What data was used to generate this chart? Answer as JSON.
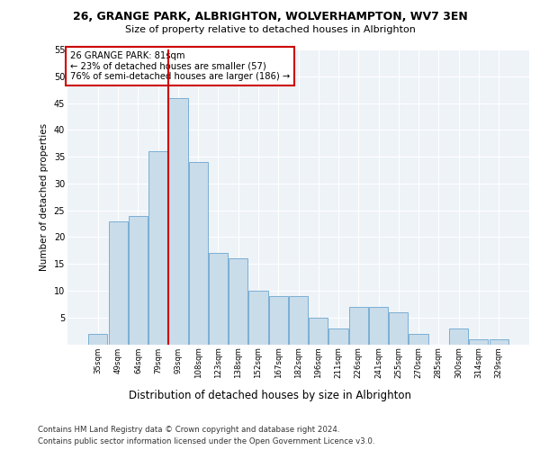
{
  "title1": "26, GRANGE PARK, ALBRIGHTON, WOLVERHAMPTON, WV7 3EN",
  "title2": "Size of property relative to detached houses in Albrighton",
  "xlabel": "Distribution of detached houses by size in Albrighton",
  "ylabel": "Number of detached properties",
  "categories": [
    "35sqm",
    "49sqm",
    "64sqm",
    "79sqm",
    "93sqm",
    "108sqm",
    "123sqm",
    "138sqm",
    "152sqm",
    "167sqm",
    "182sqm",
    "196sqm",
    "211sqm",
    "226sqm",
    "241sqm",
    "255sqm",
    "270sqm",
    "285sqm",
    "300sqm",
    "314sqm",
    "329sqm"
  ],
  "values": [
    2,
    23,
    24,
    36,
    46,
    34,
    17,
    16,
    10,
    9,
    9,
    5,
    3,
    7,
    7,
    6,
    2,
    0,
    3,
    1,
    1
  ],
  "bar_color": "#c9dcea",
  "bar_edge_color": "#7aafd4",
  "ref_line_color": "#cc0000",
  "annotation_text": "26 GRANGE PARK: 81sqm\n← 23% of detached houses are smaller (57)\n76% of semi-detached houses are larger (186) →",
  "annotation_box_color": "#cc0000",
  "ylim": [
    0,
    55
  ],
  "yticks": [
    0,
    5,
    10,
    15,
    20,
    25,
    30,
    35,
    40,
    45,
    50,
    55
  ],
  "footer1": "Contains HM Land Registry data © Crown copyright and database right 2024.",
  "footer2": "Contains public sector information licensed under the Open Government Licence v3.0.",
  "plot_bg_color": "#eef3f8"
}
